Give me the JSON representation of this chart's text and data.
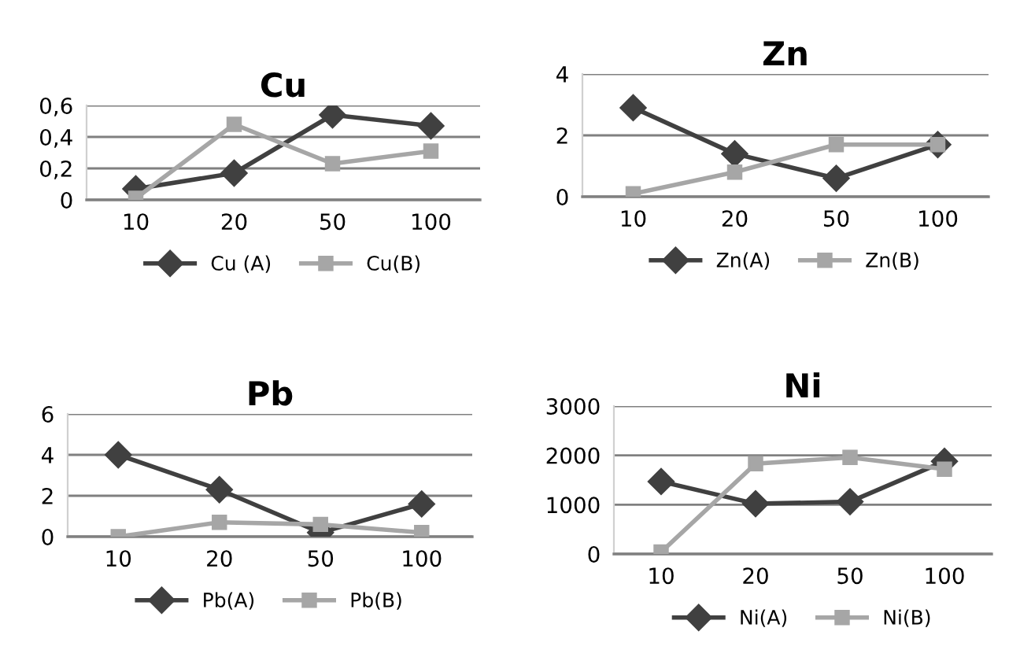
{
  "chart_data": [
    {
      "type": "line",
      "title": "Cu",
      "categories": [
        "10",
        "20",
        "50",
        "100"
      ],
      "ylim": [
        0,
        0.6
      ],
      "yticks": [
        0,
        {
          "value": 0.2,
          "label": "0,2"
        },
        {
          "value": 0.4,
          "label": "0,4"
        },
        {
          "value": 0.6,
          "label": "0,6"
        }
      ],
      "grid": "y",
      "legend": "bottom",
      "series": [
        {
          "name": "Cu (A)",
          "color": "#404040",
          "marker": "diamond",
          "values": [
            0.07,
            0.17,
            0.54,
            0.47
          ]
        },
        {
          "name": "Cu(B)",
          "color": "#a6a6a6",
          "marker": "square",
          "values": [
            0.01,
            0.48,
            0.23,
            0.31
          ]
        }
      ]
    },
    {
      "type": "line",
      "title": "Zn",
      "categories": [
        "10",
        "20",
        "50",
        "100"
      ],
      "ylim": [
        0,
        4
      ],
      "yticks": [
        0,
        2,
        4
      ],
      "grid": "y",
      "legend": "bottom",
      "series": [
        {
          "name": "Zn(A)",
          "color": "#404040",
          "marker": "diamond",
          "values": [
            2.9,
            1.4,
            0.6,
            1.7
          ]
        },
        {
          "name": "Zn(B)",
          "color": "#a6a6a6",
          "marker": "square",
          "values": [
            0.1,
            0.8,
            1.7,
            1.7
          ]
        }
      ]
    },
    {
      "type": "line",
      "title": "Pb",
      "categories": [
        "10",
        "20",
        "50",
        "100"
      ],
      "ylim": [
        0,
        6
      ],
      "yticks": [
        0,
        2,
        4,
        6
      ],
      "grid": "y",
      "legend": "bottom",
      "series": [
        {
          "name": "Pb(A)",
          "color": "#404040",
          "marker": "diamond",
          "values": [
            4.0,
            2.3,
            0.2,
            1.6
          ]
        },
        {
          "name": "Pb(B)",
          "color": "#a6a6a6",
          "marker": "square",
          "values": [
            0.0,
            0.7,
            0.6,
            0.2
          ]
        }
      ]
    },
    {
      "type": "line",
      "title": "Ni",
      "categories": [
        "10",
        "20",
        "50",
        "100"
      ],
      "ylim": [
        0,
        3000
      ],
      "yticks": [
        0,
        1000,
        2000,
        3000
      ],
      "grid": "y",
      "legend": "bottom",
      "series": [
        {
          "name": "Ni(A)",
          "color": "#404040",
          "marker": "diamond",
          "values": [
            1470,
            1020,
            1060,
            1880
          ]
        },
        {
          "name": "Ni(B)",
          "color": "#a6a6a6",
          "marker": "square",
          "values": [
            40,
            1830,
            1960,
            1720
          ]
        }
      ]
    }
  ]
}
